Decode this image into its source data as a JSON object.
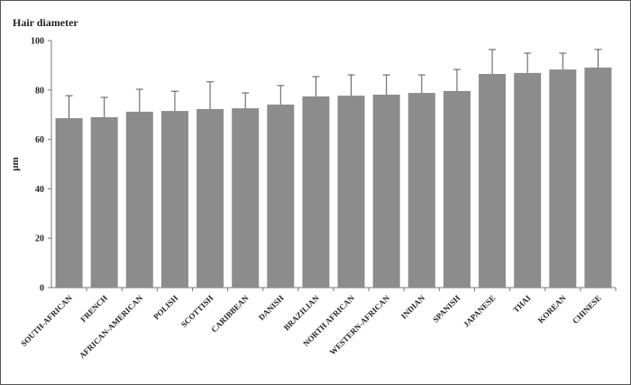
{
  "chart_data": {
    "type": "bar",
    "title": "Hair diameter",
    "y_label": "µm",
    "categories": [
      "SOUTH-AFRICAN",
      "FRENCH",
      "AFRICAN-AMERICAN",
      "POLISH",
      "SCOTTISH",
      "CARIBBEAN",
      "DANISH",
      "BRAZILIAN",
      "NORTH AFRICAN",
      "WESTERN-AFRICAN",
      "INDIAN",
      "SPANISH",
      "JAPANESE",
      "THAI",
      "KOREAN",
      "CHINESE"
    ],
    "values": [
      68.6,
      69.0,
      71.2,
      71.5,
      72.3,
      72.6,
      74.1,
      77.4,
      77.7,
      78.1,
      78.8,
      79.6,
      86.5,
      86.9,
      88.3,
      89.1
    ],
    "errors": [
      9.1,
      8.0,
      9.1,
      8.0,
      11.0,
      6.2,
      7.7,
      8.0,
      8.4,
      8.0,
      7.3,
      8.7,
      9.9,
      8.0,
      6.6,
      7.3
    ],
    "color": "#8c8c8c",
    "ylim": [
      0,
      100
    ],
    "yticks": [
      0,
      20,
      40,
      60,
      80,
      100
    ],
    "grid": false
  }
}
